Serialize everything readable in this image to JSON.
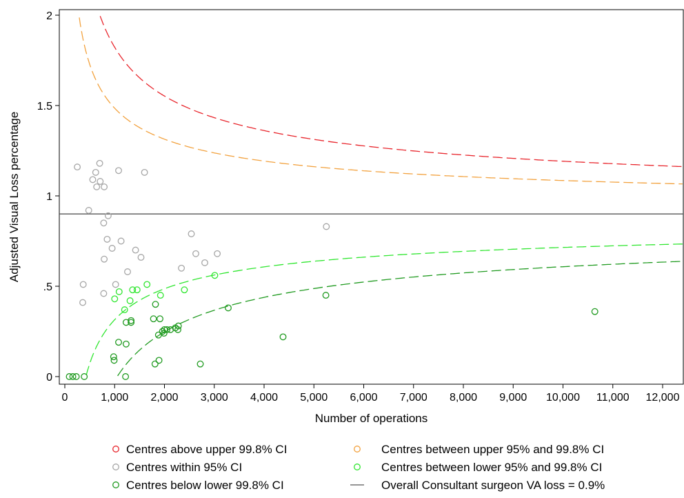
{
  "chart_data": {
    "type": "scatter",
    "title": "",
    "xlabel": "Number of operations",
    "ylabel": "Adjusted Visual Loss percentage",
    "xlim": [
      0,
      12500
    ],
    "ylim": [
      0,
      2
    ],
    "x_ticks": [
      0,
      1000,
      2000,
      3000,
      4000,
      5000,
      6000,
      7000,
      8000,
      9000,
      10000,
      11000,
      12000
    ],
    "x_tick_labels": [
      "0",
      "1,000",
      "2,000",
      "3,000",
      "4,000",
      "5,000",
      "6,000",
      "7,000",
      "8,000",
      "9,000",
      "10,000",
      "11,000",
      "12,000"
    ],
    "y_ticks": [
      0,
      0.5,
      1,
      1.5,
      2
    ],
    "y_tick_labels": [
      "0",
      ".5",
      "1",
      "1.5",
      "2"
    ],
    "grid": false,
    "legend_placement": "bottom",
    "overall_rate": 0.9,
    "series": [
      {
        "name": "Centres above upper 99.8% CI",
        "kind": "points",
        "color": "#e8242b",
        "points": []
      },
      {
        "name": "Centres between upper 95% and 99.8% CI",
        "kind": "points",
        "color": "#f2a13d",
        "points": []
      },
      {
        "name": "Centres within 95% CI",
        "kind": "points",
        "color": "#a6a6a6",
        "points": [
          [
            250,
            1.16
          ],
          [
            560,
            1.09
          ],
          [
            620,
            1.13
          ],
          [
            640,
            1.05
          ],
          [
            700,
            1.18
          ],
          [
            710,
            1.08
          ],
          [
            790,
            1.05
          ],
          [
            1080,
            1.14
          ],
          [
            1600,
            1.13
          ],
          [
            480,
            0.92
          ],
          [
            870,
            0.89
          ],
          [
            780,
            0.85
          ],
          [
            850,
            0.76
          ],
          [
            1130,
            0.75
          ],
          [
            950,
            0.71
          ],
          [
            1420,
            0.7
          ],
          [
            1530,
            0.66
          ],
          [
            790,
            0.65
          ],
          [
            1260,
            0.58
          ],
          [
            370,
            0.51
          ],
          [
            1020,
            0.51
          ],
          [
            780,
            0.46
          ],
          [
            360,
            0.41
          ],
          [
            2540,
            0.79
          ],
          [
            2630,
            0.68
          ],
          [
            2810,
            0.63
          ],
          [
            3060,
            0.68
          ],
          [
            2340,
            0.6
          ],
          [
            5250,
            0.83
          ]
        ]
      },
      {
        "name": "Centres between lower 95% and 99.8% CI",
        "kind": "points",
        "color": "#2ee62e",
        "points": [
          [
            1650,
            0.51
          ],
          [
            1090,
            0.47
          ],
          [
            1360,
            0.48
          ],
          [
            1450,
            0.48
          ],
          [
            1000,
            0.43
          ],
          [
            1310,
            0.42
          ],
          [
            1920,
            0.45
          ],
          [
            1200,
            0.37
          ],
          [
            2400,
            0.48
          ],
          [
            3010,
            0.56
          ]
        ]
      },
      {
        "name": "Centres below lower 99.8% CI",
        "kind": "points",
        "color": "#1f9a1f",
        "points": [
          [
            90,
            0.0
          ],
          [
            160,
            0.0
          ],
          [
            230,
            0.0
          ],
          [
            390,
            0.0
          ],
          [
            1220,
            0.0
          ],
          [
            980,
            0.11
          ],
          [
            990,
            0.09
          ],
          [
            1080,
            0.19
          ],
          [
            1230,
            0.18
          ],
          [
            1330,
            0.31
          ],
          [
            1330,
            0.3
          ],
          [
            1230,
            0.3
          ],
          [
            1780,
            0.32
          ],
          [
            1910,
            0.32
          ],
          [
            1820,
            0.4
          ],
          [
            1960,
            0.25
          ],
          [
            2000,
            0.26
          ],
          [
            2050,
            0.26
          ],
          [
            2120,
            0.26
          ],
          [
            2220,
            0.27
          ],
          [
            2280,
            0.28
          ],
          [
            2270,
            0.26
          ],
          [
            1880,
            0.23
          ],
          [
            1990,
            0.24
          ],
          [
            1810,
            0.07
          ],
          [
            1890,
            0.09
          ],
          [
            2720,
            0.07
          ],
          [
            3280,
            0.38
          ],
          [
            4380,
            0.22
          ],
          [
            5240,
            0.45
          ],
          [
            10640,
            0.36
          ]
        ]
      },
      {
        "name": "Overall Consultant surgeon VA loss = 0.9%",
        "kind": "line",
        "color": "#555555"
      }
    ]
  }
}
